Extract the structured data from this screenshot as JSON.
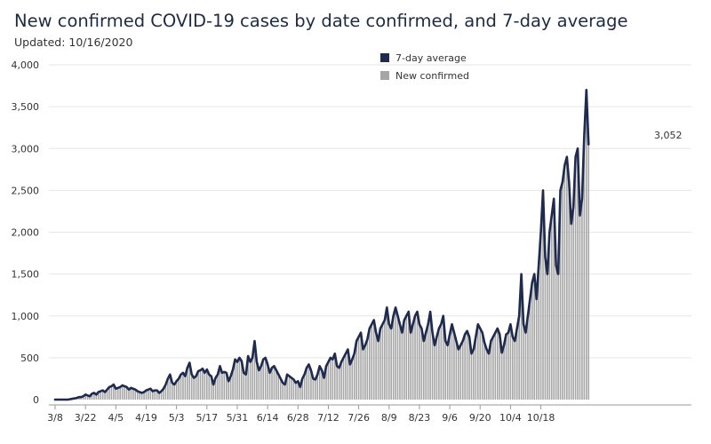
{
  "title": "New confirmed COVID-19 cases by date confirmed, and 7-day average",
  "subtitle": "Updated: 10/16/2020",
  "colors": {
    "bar": "#a6a6a6",
    "line": "#1f2a4f",
    "grid": "#e6e6e6"
  },
  "legend": [
    {
      "label": "7-day average",
      "color": "#1f2a4f"
    },
    {
      "label": "New confirmed",
      "color": "#a6a6a6"
    }
  ],
  "annotation": {
    "label": "3,052"
  },
  "chart_data": {
    "type": "bar",
    "title": "New confirmed COVID-19 cases by date confirmed, and 7-day average",
    "start_date": "2020-03-08",
    "ylim": [
      0,
      4000
    ],
    "y_ticks": [
      0,
      500,
      1000,
      1500,
      2000,
      2500,
      3000,
      3500,
      4000
    ],
    "y_tick_labels": [
      "0",
      "500",
      "1,000",
      "1,500",
      "2,000",
      "2,500",
      "3,000",
      "3,500",
      "4,000"
    ],
    "x_tick_labels": [
      "3/8",
      "3/22",
      "4/5",
      "4/19",
      "5/3",
      "5/17",
      "5/31",
      "6/14",
      "6/28",
      "7/12",
      "7/26",
      "8/9",
      "8/23",
      "9/6",
      "9/20",
      "10/4",
      "10/18"
    ],
    "legend_position": "top-center",
    "grid": true,
    "series": [
      {
        "name": "New confirmed",
        "type": "bar",
        "values": [
          0,
          0,
          0,
          0,
          0,
          0,
          0,
          5,
          10,
          15,
          20,
          30,
          30,
          40,
          60,
          50,
          40,
          70,
          80,
          60,
          90,
          100,
          110,
          90,
          120,
          150,
          160,
          180,
          130,
          140,
          150,
          170,
          160,
          150,
          120,
          140,
          130,
          120,
          100,
          90,
          80,
          90,
          110,
          120,
          130,
          100,
          110,
          110,
          80,
          100,
          130,
          180,
          250,
          300,
          200,
          180,
          220,
          250,
          300,
          320,
          280,
          380,
          440,
          300,
          260,
          280,
          340,
          350,
          370,
          320,
          360,
          300,
          280,
          180,
          260,
          300,
          400,
          320,
          330,
          320,
          220,
          280,
          360,
          480,
          450,
          500,
          460,
          320,
          300,
          520,
          450,
          500,
          700,
          450,
          350,
          400,
          480,
          500,
          420,
          320,
          380,
          400,
          350,
          300,
          250,
          200,
          180,
          300,
          280,
          260,
          240,
          200,
          220,
          150,
          250,
          300,
          380,
          420,
          350,
          250,
          240,
          300,
          400,
          350,
          260,
          400,
          450,
          500,
          480,
          550,
          400,
          380,
          450,
          500,
          550,
          600,
          420,
          480,
          550,
          700,
          750,
          800,
          600,
          650,
          720,
          850,
          900,
          950,
          800,
          700,
          850,
          900,
          950,
          1100,
          900,
          850,
          1000,
          1100,
          1000,
          900,
          800,
          950,
          1000,
          1050,
          800,
          900,
          1000,
          1050,
          900,
          850,
          700,
          800,
          900,
          1050,
          800,
          650,
          750,
          850,
          900,
          1000,
          700,
          650,
          780,
          900,
          800,
          700,
          600,
          650,
          700,
          780,
          820,
          750,
          550,
          600,
          750,
          900,
          850,
          800,
          680,
          600,
          550,
          700,
          750,
          800,
          850,
          780,
          560,
          650,
          780,
          800,
          900,
          750,
          700,
          850,
          1000,
          1500,
          900,
          800,
          1000,
          1200,
          1400,
          1500,
          1200,
          1600,
          2000,
          2500,
          1700,
          1500,
          2000,
          2200,
          2400,
          1600,
          1500,
          2500,
          2600,
          2800,
          2900,
          2600,
          2100,
          2300,
          2900,
          3000,
          2200,
          2400,
          3150,
          3700,
          3050
        ]
      },
      {
        "name": "7-day average",
        "type": "line",
        "values": [
          0,
          0,
          0,
          0,
          0,
          0,
          0,
          5,
          10,
          15,
          20,
          30,
          30,
          40,
          60,
          50,
          40,
          70,
          80,
          60,
          90,
          100,
          110,
          90,
          120,
          150,
          160,
          180,
          130,
          140,
          150,
          170,
          160,
          150,
          120,
          140,
          130,
          120,
          100,
          90,
          80,
          90,
          110,
          120,
          130,
          100,
          110,
          110,
          80,
          100,
          130,
          180,
          250,
          300,
          200,
          180,
          220,
          250,
          300,
          320,
          280,
          380,
          440,
          300,
          260,
          280,
          340,
          350,
          370,
          320,
          360,
          300,
          280,
          180,
          260,
          300,
          400,
          320,
          330,
          320,
          220,
          280,
          360,
          480,
          450,
          500,
          460,
          320,
          300,
          520,
          450,
          500,
          700,
          450,
          350,
          400,
          480,
          500,
          420,
          320,
          380,
          400,
          350,
          300,
          250,
          200,
          180,
          300,
          280,
          260,
          240,
          200,
          220,
          150,
          250,
          300,
          380,
          420,
          350,
          250,
          240,
          300,
          400,
          350,
          260,
          400,
          450,
          500,
          480,
          550,
          400,
          380,
          450,
          500,
          550,
          600,
          420,
          480,
          550,
          700,
          750,
          800,
          600,
          650,
          720,
          850,
          900,
          950,
          800,
          700,
          850,
          900,
          950,
          1100,
          900,
          850,
          1000,
          1100,
          1000,
          900,
          800,
          950,
          1000,
          1050,
          800,
          900,
          1000,
          1050,
          900,
          850,
          700,
          800,
          900,
          1050,
          800,
          650,
          750,
          850,
          900,
          1000,
          700,
          650,
          780,
          900,
          800,
          700,
          600,
          650,
          700,
          780,
          820,
          750,
          550,
          600,
          750,
          900,
          850,
          800,
          680,
          600,
          550,
          700,
          750,
          800,
          850,
          780,
          560,
          650,
          780,
          800,
          900,
          750,
          700,
          850,
          1000,
          1500,
          900,
          800,
          1000,
          1200,
          1400,
          1500,
          1200,
          1600,
          2000,
          2500,
          1700,
          1500,
          2000,
          2200,
          2400,
          1600,
          1500,
          2500,
          2600,
          2800,
          2900,
          2600,
          2100,
          2300,
          2900,
          3000,
          2200,
          2400,
          3150,
          3700,
          3050
        ]
      }
    ]
  }
}
